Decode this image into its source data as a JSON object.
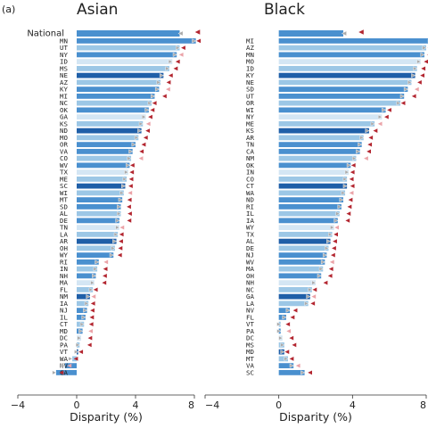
{
  "figure": {
    "label": "(a)"
  },
  "colors": {
    "bar_dark": "#1f5fa8",
    "bar_mid": "#4a90cf",
    "bar_light": "#9cc7e6",
    "bar_pale": "#d4e6f4",
    "marker_dark": "#b32630",
    "marker_light": "#eba3a8",
    "marker_gray": "#aaaaaa"
  },
  "chart_data": [
    {
      "type": "bar",
      "title": "Asian",
      "xlabel": "Disparity (%)",
      "ylabel": "",
      "xlim": [
        -4,
        8
      ],
      "xticks": [
        -4,
        0,
        4,
        8
      ],
      "national": {
        "label": "National",
        "value": 7.0
      },
      "categories": [
        "MN",
        "UT",
        "NY",
        "ID",
        "MS",
        "NE",
        "AZ",
        "KY",
        "MI",
        "NC",
        "OK",
        "GA",
        "KS",
        "ND",
        "MO",
        "OR",
        "VA",
        "CO",
        "WV",
        "TX",
        "ME",
        "SC",
        "WI",
        "MT",
        "SD",
        "AL",
        "DE",
        "TN",
        "LA",
        "AR",
        "OH",
        "WY",
        "RI",
        "IN",
        "NH",
        "MA",
        "FL",
        "NM",
        "IA",
        "NJ",
        "IL",
        "CT",
        "MD",
        "DC",
        "PA",
        "VT",
        "WA",
        "NV",
        "CA"
      ],
      "values": [
        8.1,
        7.0,
        6.8,
        6.5,
        6.3,
        5.9,
        5.7,
        5.6,
        5.3,
        5.1,
        4.9,
        4.7,
        4.5,
        4.4,
        4.2,
        4.0,
        3.8,
        3.7,
        3.6,
        3.5,
        3.4,
        3.3,
        3.2,
        3.1,
        3.0,
        3.0,
        2.9,
        2.9,
        2.8,
        2.7,
        2.6,
        2.5,
        1.5,
        1.4,
        1.3,
        1.2,
        1.1,
        0.9,
        0.8,
        0.7,
        0.6,
        0.5,
        0.4,
        0.3,
        0.2,
        0.1,
        -0.3,
        -0.8,
        -1.4
      ]
    },
    {
      "type": "bar",
      "title": "Black",
      "xlabel": "Disparity (%)",
      "ylabel": "",
      "xlim": [
        -4,
        8
      ],
      "xticks": [
        -4,
        0,
        4,
        8
      ],
      "national": {
        "label": "",
        "value": 3.5
      },
      "categories": [
        "MI",
        "AZ",
        "MN",
        "MO",
        "ID",
        "KY",
        "NE",
        "SD",
        "UT",
        "OR",
        "WI",
        "NY",
        "ME",
        "KS",
        "AR",
        "TN",
        "CA",
        "NM",
        "OK",
        "IN",
        "CO",
        "CT",
        "WA",
        "ND",
        "RI",
        "IL",
        "IA",
        "WY",
        "TX",
        "AL",
        "DE",
        "NJ",
        "WV",
        "MA",
        "OH",
        "NH",
        "NC",
        "GA",
        "LA",
        "NV",
        "FL",
        "VT",
        "PA",
        "DC",
        "MS",
        "MD",
        "MT",
        "VA",
        "SC"
      ],
      "values": [
        8.3,
        8.0,
        7.9,
        7.7,
        7.5,
        7.4,
        7.2,
        7.0,
        6.8,
        6.6,
        5.8,
        5.6,
        5.2,
        4.9,
        4.6,
        4.5,
        4.4,
        4.2,
        3.9,
        3.8,
        3.7,
        3.7,
        3.6,
        3.5,
        3.4,
        3.3,
        3.2,
        3.0,
        2.9,
        2.8,
        2.7,
        2.6,
        2.5,
        2.4,
        2.3,
        2.0,
        1.8,
        1.7,
        1.6,
        0.6,
        0.4,
        0.1,
        0.1,
        0.2,
        0.3,
        0.3,
        0.5,
        0.8,
        1.4
      ]
    }
  ]
}
